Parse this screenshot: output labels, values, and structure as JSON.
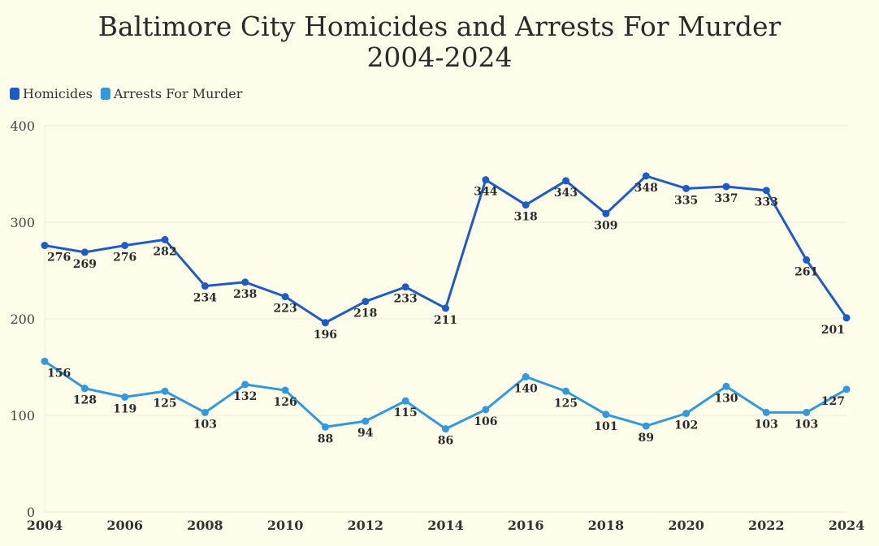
{
  "chart_data": {
    "type": "line",
    "title": [
      "Baltimore City Homicides and Arrests For Murder",
      "2004-2024"
    ],
    "xlabel": "",
    "ylabel": "",
    "x": [
      2004,
      2005,
      2006,
      2007,
      2008,
      2009,
      2010,
      2011,
      2012,
      2013,
      2014,
      2015,
      2016,
      2017,
      2018,
      2019,
      2020,
      2021,
      2022,
      2023,
      2024
    ],
    "x_ticks": [
      2004,
      2006,
      2008,
      2010,
      2012,
      2014,
      2016,
      2018,
      2020,
      2022,
      2024
    ],
    "ylim": [
      0,
      400
    ],
    "y_ticks": [
      0,
      100,
      200,
      300,
      400
    ],
    "grid": true,
    "legend_position": "top-left",
    "series": [
      {
        "name": "Homicides",
        "color": "#1f5bc4",
        "values": [
          276,
          269,
          276,
          282,
          234,
          238,
          223,
          196,
          218,
          233,
          211,
          344,
          318,
          343,
          309,
          348,
          335,
          337,
          333,
          261,
          201
        ]
      },
      {
        "name": "Arrests For Murder",
        "color": "#3399dd",
        "values": [
          156,
          128,
          119,
          125,
          103,
          132,
          126,
          88,
          94,
          115,
          86,
          106,
          140,
          125,
          101,
          89,
          102,
          130,
          103,
          103,
          127
        ]
      }
    ]
  }
}
